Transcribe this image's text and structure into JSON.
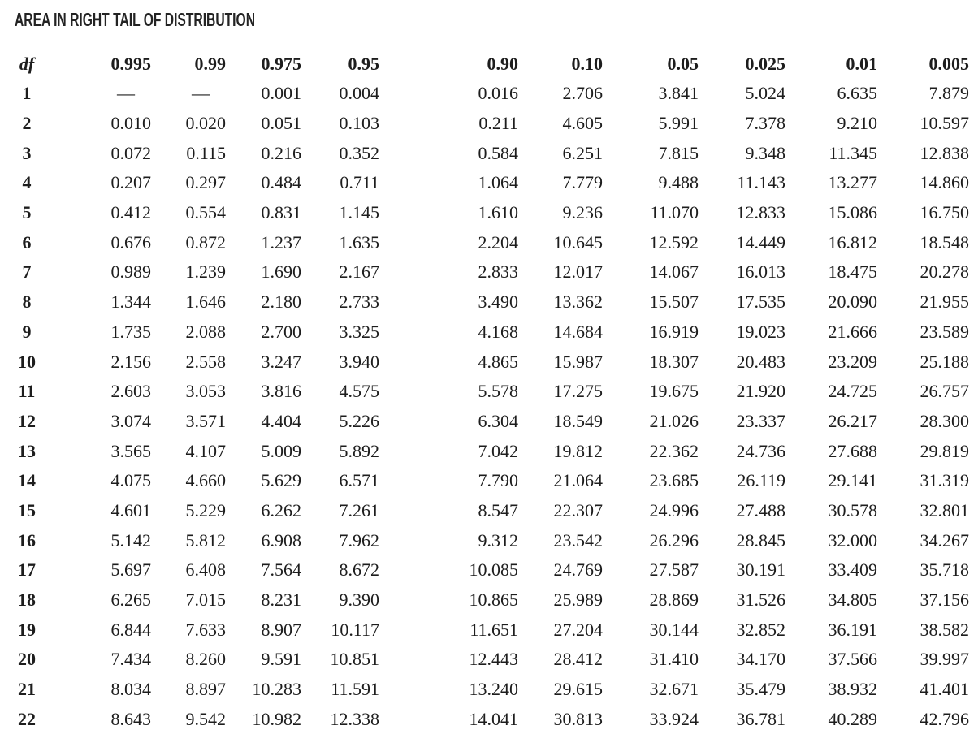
{
  "title": "AREA IN RIGHT TAIL OF DISTRIBUTION",
  "table": {
    "df_header": "df",
    "tail_area_headers": [
      "0.995",
      "0.99",
      "0.975",
      "0.95",
      "0.90",
      "0.10",
      "0.05",
      "0.025",
      "0.01",
      "0.005"
    ],
    "rows": [
      {
        "df": "1",
        "values": [
          "—",
          "—",
          "0.001",
          "0.004",
          "0.016",
          "2.706",
          "3.841",
          "5.024",
          "6.635",
          "7.879"
        ]
      },
      {
        "df": "2",
        "values": [
          "0.010",
          "0.020",
          "0.051",
          "0.103",
          "0.211",
          "4.605",
          "5.991",
          "7.378",
          "9.210",
          "10.597"
        ]
      },
      {
        "df": "3",
        "values": [
          "0.072",
          "0.115",
          "0.216",
          "0.352",
          "0.584",
          "6.251",
          "7.815",
          "9.348",
          "11.345",
          "12.838"
        ]
      },
      {
        "df": "4",
        "values": [
          "0.207",
          "0.297",
          "0.484",
          "0.711",
          "1.064",
          "7.779",
          "9.488",
          "11.143",
          "13.277",
          "14.860"
        ]
      },
      {
        "df": "5",
        "values": [
          "0.412",
          "0.554",
          "0.831",
          "1.145",
          "1.610",
          "9.236",
          "11.070",
          "12.833",
          "15.086",
          "16.750"
        ]
      },
      {
        "df": "6",
        "values": [
          "0.676",
          "0.872",
          "1.237",
          "1.635",
          "2.204",
          "10.645",
          "12.592",
          "14.449",
          "16.812",
          "18.548"
        ]
      },
      {
        "df": "7",
        "values": [
          "0.989",
          "1.239",
          "1.690",
          "2.167",
          "2.833",
          "12.017",
          "14.067",
          "16.013",
          "18.475",
          "20.278"
        ]
      },
      {
        "df": "8",
        "values": [
          "1.344",
          "1.646",
          "2.180",
          "2.733",
          "3.490",
          "13.362",
          "15.507",
          "17.535",
          "20.090",
          "21.955"
        ]
      },
      {
        "df": "9",
        "values": [
          "1.735",
          "2.088",
          "2.700",
          "3.325",
          "4.168",
          "14.684",
          "16.919",
          "19.023",
          "21.666",
          "23.589"
        ]
      },
      {
        "df": "10",
        "values": [
          "2.156",
          "2.558",
          "3.247",
          "3.940",
          "4.865",
          "15.987",
          "18.307",
          "20.483",
          "23.209",
          "25.188"
        ]
      },
      {
        "df": "11",
        "values": [
          "2.603",
          "3.053",
          "3.816",
          "4.575",
          "5.578",
          "17.275",
          "19.675",
          "21.920",
          "24.725",
          "26.757"
        ]
      },
      {
        "df": "12",
        "values": [
          "3.074",
          "3.571",
          "4.404",
          "5.226",
          "6.304",
          "18.549",
          "21.026",
          "23.337",
          "26.217",
          "28.300"
        ]
      },
      {
        "df": "13",
        "values": [
          "3.565",
          "4.107",
          "5.009",
          "5.892",
          "7.042",
          "19.812",
          "22.362",
          "24.736",
          "27.688",
          "29.819"
        ]
      },
      {
        "df": "14",
        "values": [
          "4.075",
          "4.660",
          "5.629",
          "6.571",
          "7.790",
          "21.064",
          "23.685",
          "26.119",
          "29.141",
          "31.319"
        ]
      },
      {
        "df": "15",
        "values": [
          "4.601",
          "5.229",
          "6.262",
          "7.261",
          "8.547",
          "22.307",
          "24.996",
          "27.488",
          "30.578",
          "32.801"
        ]
      },
      {
        "df": "16",
        "values": [
          "5.142",
          "5.812",
          "6.908",
          "7.962",
          "9.312",
          "23.542",
          "26.296",
          "28.845",
          "32.000",
          "34.267"
        ]
      },
      {
        "df": "17",
        "values": [
          "5.697",
          "6.408",
          "7.564",
          "8.672",
          "10.085",
          "24.769",
          "27.587",
          "30.191",
          "33.409",
          "35.718"
        ]
      },
      {
        "df": "18",
        "values": [
          "6.265",
          "7.015",
          "8.231",
          "9.390",
          "10.865",
          "25.989",
          "28.869",
          "31.526",
          "34.805",
          "37.156"
        ]
      },
      {
        "df": "19",
        "values": [
          "6.844",
          "7.633",
          "8.907",
          "10.117",
          "11.651",
          "27.204",
          "30.144",
          "32.852",
          "36.191",
          "38.582"
        ]
      },
      {
        "df": "20",
        "values": [
          "7.434",
          "8.260",
          "9.591",
          "10.851",
          "12.443",
          "28.412",
          "31.410",
          "34.170",
          "37.566",
          "39.997"
        ]
      },
      {
        "df": "21",
        "values": [
          "8.034",
          "8.897",
          "10.283",
          "11.591",
          "13.240",
          "29.615",
          "32.671",
          "35.479",
          "38.932",
          "41.401"
        ]
      },
      {
        "df": "22",
        "values": [
          "8.643",
          "9.542",
          "10.982",
          "12.338",
          "14.041",
          "30.813",
          "33.924",
          "36.781",
          "40.289",
          "42.796"
        ]
      }
    ]
  }
}
